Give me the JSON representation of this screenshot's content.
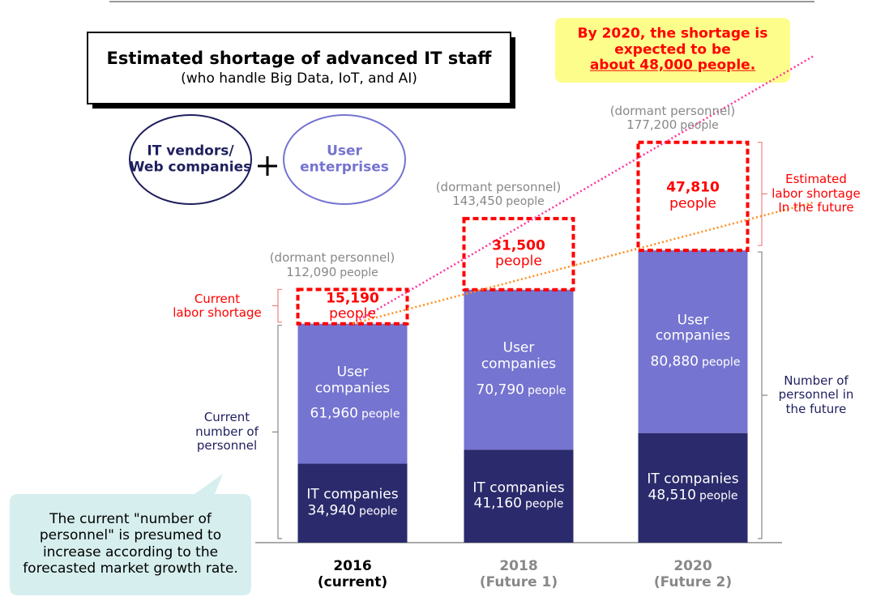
{
  "title": "Estimated shortage of advanced IT staff",
  "subtitle": "(who handle Big Data, IoT, and AI)",
  "groups": {
    "left": [
      "IT vendors/",
      "Web companies"
    ],
    "right": [
      "User",
      "enterprises"
    ]
  },
  "callout": [
    "By 2020, the shortage is",
    "expected to be",
    "about 48,000 people."
  ],
  "note": [
    "The current \"number of",
    "personnel\" is presumed to",
    "increase according to the",
    "forecasted market growth rate."
  ],
  "chart_data": {
    "type": "bar",
    "stacked": true,
    "categories": [
      "2016",
      "2018",
      "2020"
    ],
    "category_notes": [
      "(current)",
      "(Future 1)",
      "(Future 2)"
    ],
    "unit": "people",
    "series": [
      {
        "name": "IT companies",
        "color": "#2a2a6c",
        "values": [
          34940,
          41160,
          48510
        ],
        "value_labels": [
          "34,940",
          "41,160",
          "48,510"
        ]
      },
      {
        "name": "User companies",
        "color": "#7574d0",
        "values": [
          61960,
          70790,
          80880
        ],
        "value_labels": [
          "61,960",
          "70,790",
          "80,880"
        ]
      },
      {
        "color": "#ff0000",
        "style": "dashed",
        "values": [
          15190,
          31500,
          47810
        ],
        "value_labels": [
          "15,190",
          "31,500",
          "47,810"
        ]
      }
    ],
    "totals": {
      "label": "(dormant personnel)",
      "values": [
        112090,
        143450,
        177200
      ],
      "value_labels": [
        "112,090",
        "143,450",
        "177,200"
      ]
    },
    "ylim": [
      0,
      190000
    ],
    "annotations": {
      "current_shortage": [
        "Current",
        "labor shortage"
      ],
      "current_personnel": [
        "Current",
        "number of",
        "personnel"
      ],
      "future_shortage": [
        "Estimated",
        "labor shortage",
        "In the future"
      ],
      "future_personnel": [
        "Number of",
        "personnel in",
        "the future"
      ]
    }
  }
}
